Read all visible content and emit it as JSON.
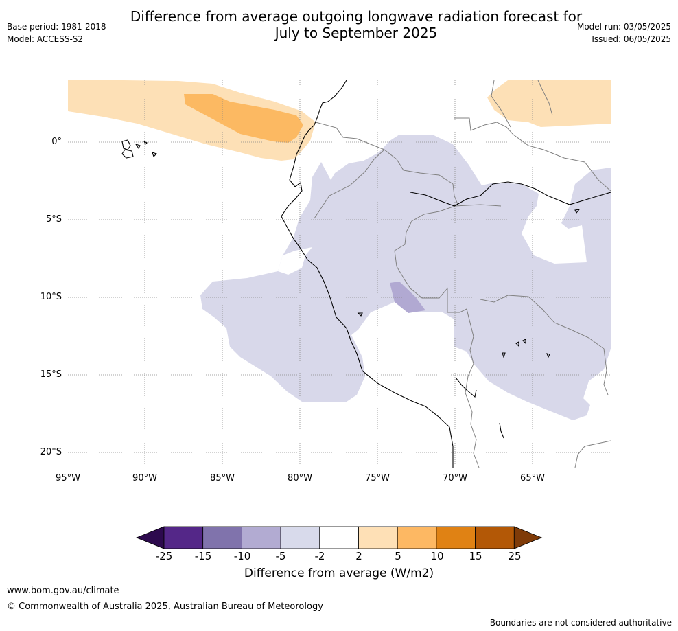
{
  "header": {
    "title_line1": "Difference from average outgoing longwave radiation forecast for",
    "title_line2": "July to September 2025",
    "base_period": "Base period: 1981-2018",
    "model": "Model: ACCESS-S2",
    "model_run": "Model run: 03/05/2025",
    "issued": "Issued: 06/05/2025"
  },
  "map": {
    "lat_labels": [
      "0°",
      "5°S",
      "10°S",
      "15°S",
      "20°S"
    ],
    "lon_labels": [
      "95°W",
      "90°W",
      "85°W",
      "80°W",
      "75°W",
      "70°W",
      "65°W"
    ],
    "colors": {
      "lt_minus5": "#b1a9d2",
      "minus5_to_minus2": "#d8d8ea",
      "plus2_to_plus5": "#fde0b6",
      "plus5_to_plus10": "#fcb962",
      "coast": "#000000",
      "border": "#808080",
      "grid": "#888888"
    }
  },
  "colorbar": {
    "ticks": [
      "-25",
      "-15",
      "-10",
      "-5",
      "-2",
      "2",
      "5",
      "10",
      "15",
      "25"
    ],
    "colors": [
      "#2d0a4e",
      "#542788",
      "#8073ac",
      "#b2abd2",
      "#d8daeb",
      "#ffffff",
      "#fee0b6",
      "#fdb863",
      "#e08214",
      "#b35806",
      "#7f3b08"
    ],
    "label": "Difference from average (W/m2)"
  },
  "footer": {
    "url": "www.bom.gov.au/climate",
    "copyright": "© Commonwealth of Australia 2025, Australian Bureau of Meteorology",
    "disclaimer": "Boundaries are not considered authoritative"
  }
}
